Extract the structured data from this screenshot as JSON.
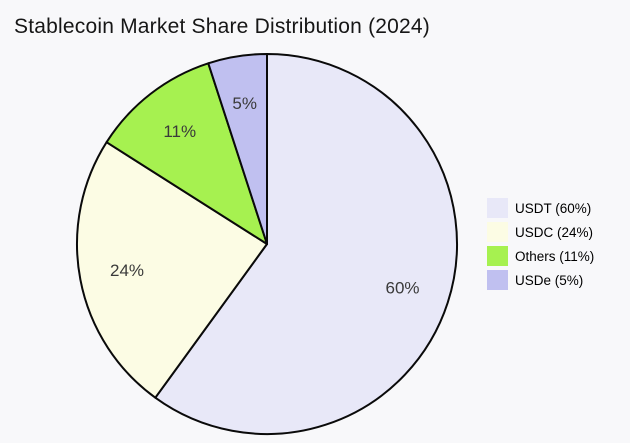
{
  "title": "Stablecoin Market Share Distribution (2024)",
  "background_color": "#f8f8fa",
  "chart_data": {
    "type": "pie",
    "title": "Stablecoin Market Share Distribution (2024)",
    "categories": [
      "USDT",
      "USDC",
      "Others",
      "USDe"
    ],
    "values": [
      60,
      24,
      11,
      5
    ],
    "unit": "%",
    "colors": [
      "#e8e8f8",
      "#fcfce4",
      "#a6f150",
      "#c0c0f0"
    ],
    "slice_labels": [
      "60%",
      "24%",
      "11%",
      "5%"
    ],
    "legend_labels": [
      "USDT (60%)",
      "USDC (24%)",
      "Others (11%)",
      "USDe (5%)"
    ],
    "start_angle": "12 o'clock",
    "direction": "clockwise",
    "legend_position": "center right",
    "edge_color": "#0a0a0a",
    "slice_label_color": "#3a3a3a",
    "label_distance": 0.75
  }
}
